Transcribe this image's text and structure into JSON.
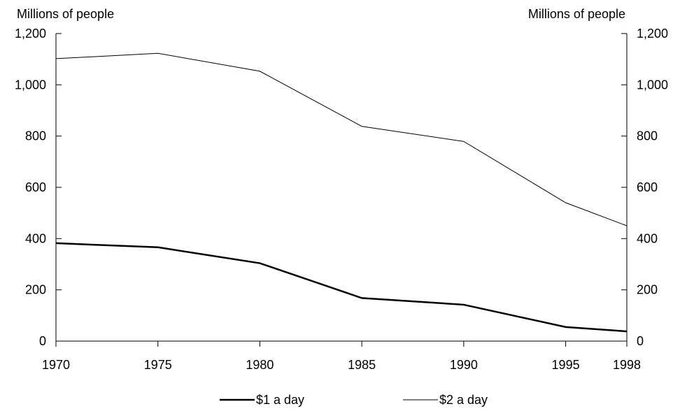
{
  "chart_data": {
    "type": "line",
    "left_axis_unit": "Millions of people",
    "right_axis_unit": "Millions of people",
    "x": [
      "1970",
      "1975",
      "1980",
      "1985",
      "1990",
      "1995",
      "1998"
    ],
    "x_numeric": [
      1970,
      1975,
      1980,
      1985,
      1990,
      1995,
      1998
    ],
    "ylim": [
      0,
      1200
    ],
    "yticks": [
      0,
      200,
      400,
      600,
      800,
      1000,
      1200
    ],
    "ytick_labels": [
      "0",
      "200",
      "400",
      "600",
      "800",
      "1,000",
      "1,200"
    ],
    "grid": false,
    "legend_position": "bottom",
    "series": [
      {
        "name": "$1 a day",
        "values": [
          382,
          366,
          304,
          168,
          142,
          55,
          38
        ],
        "color": "#000000",
        "style": "thick"
      },
      {
        "name": "$2 a day",
        "values": [
          1102,
          1123,
          1053,
          838,
          779,
          540,
          450
        ],
        "color": "#000000",
        "style": "thin"
      }
    ]
  }
}
